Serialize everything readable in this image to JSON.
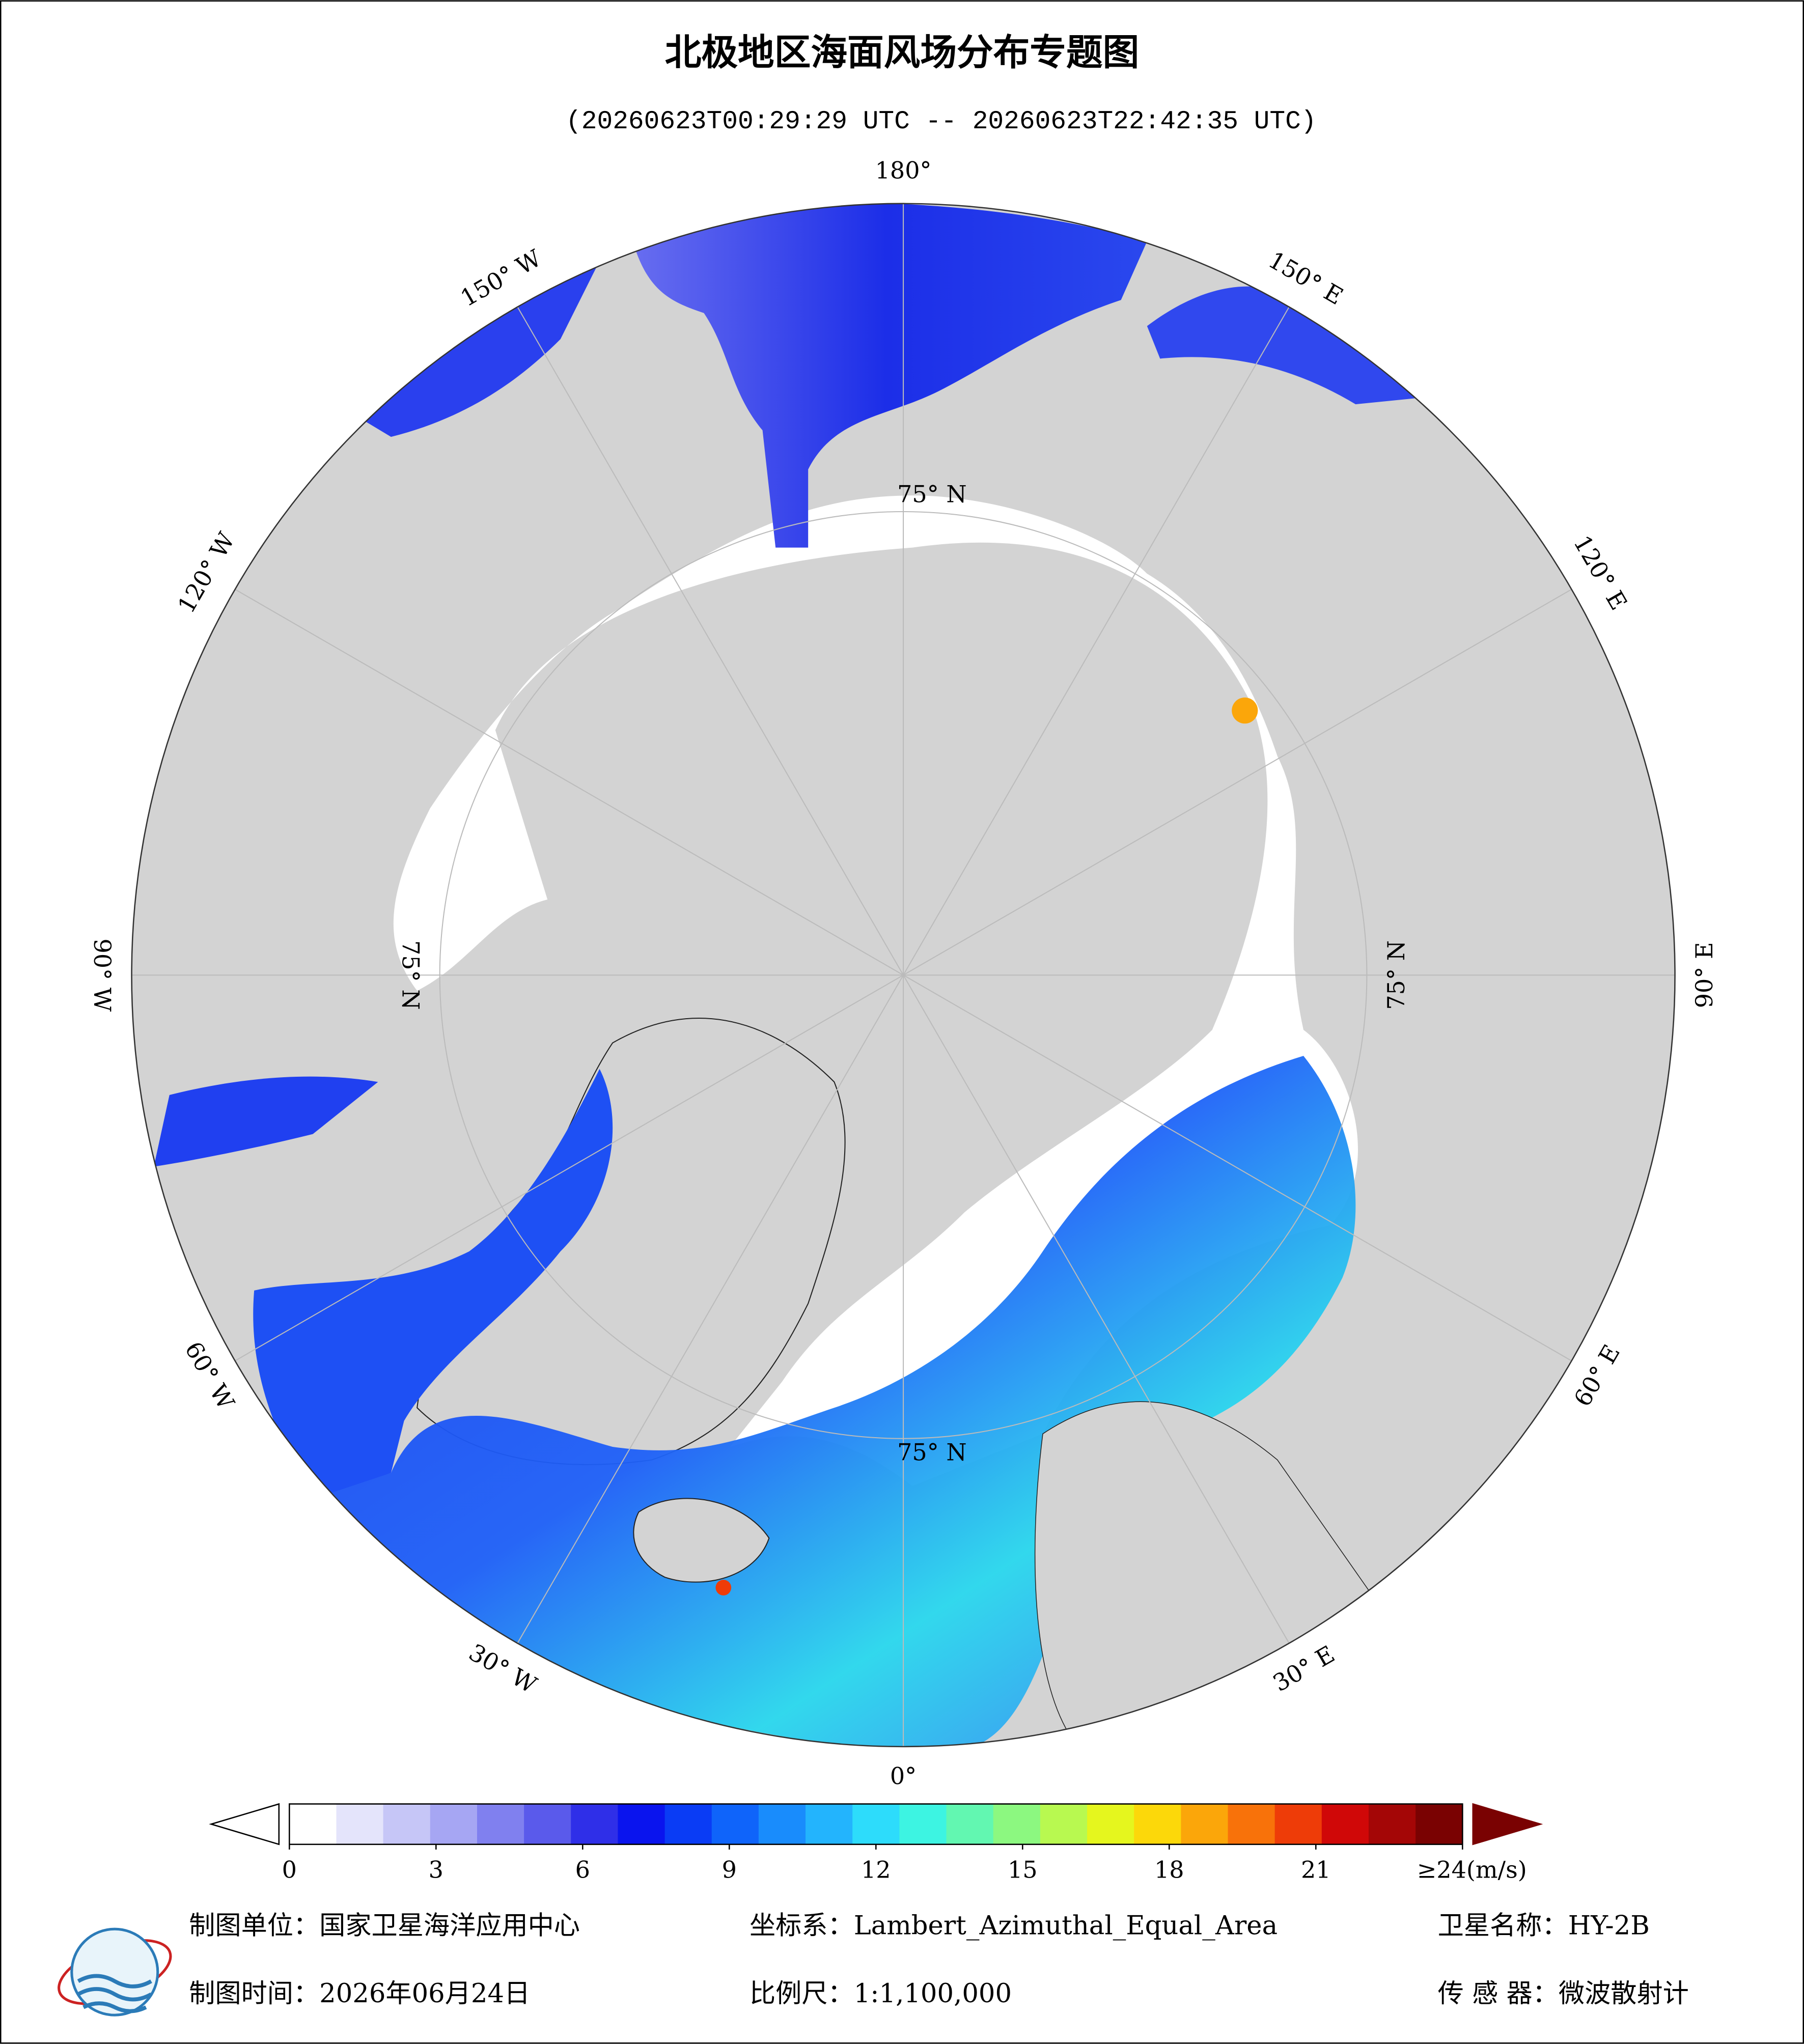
{
  "title": "北极地区海面风场分布专题图",
  "subtitle": "(20260623T00:29:29 UTC -- 20260623T22:42:35 UTC)",
  "longitude_labels": [
    {
      "value": 180,
      "label": "180°"
    },
    {
      "value": 150,
      "label": "150° E"
    },
    {
      "value": 120,
      "label": "120° E"
    },
    {
      "value": 90,
      "label": "90° E"
    },
    {
      "value": 60,
      "label": "60° E"
    },
    {
      "value": 30,
      "label": "30° E"
    },
    {
      "value": 0,
      "label": "0°"
    },
    {
      "value": -30,
      "label": "30° W"
    },
    {
      "value": -60,
      "label": "60° W"
    },
    {
      "value": -90,
      "label": "90° W"
    },
    {
      "value": -120,
      "label": "120° W"
    },
    {
      "value": -150,
      "label": "150° W"
    }
  ],
  "latitude_label": {
    "value": 75,
    "label": "75° N"
  },
  "colorbar": {
    "range": [
      0,
      24
    ],
    "ticks": [
      0,
      3,
      6,
      9,
      12,
      15,
      18,
      21,
      {
        "value": 24,
        "label": "≥24(m/s)"
      }
    ],
    "colors": [
      "#ffffff",
      "#e4e4fb",
      "#c6c6f7",
      "#a6a6f3",
      "#8080ef",
      "#5a5aeb",
      "#2f2fe8",
      "#0a14ee",
      "#0a3cf5",
      "#0f64fa",
      "#198cfc",
      "#23b4fd",
      "#2ddcfb",
      "#3df4e2",
      "#62f7b1",
      "#8cf880",
      "#b8f950",
      "#e5f61e",
      "#fcd80a",
      "#fba60a",
      "#f8720a",
      "#ee3c08",
      "#d00808",
      "#a40606",
      "#7a0202"
    ],
    "under_color": "#ffffff",
    "over_color": "#7a0202"
  },
  "footer": {
    "unit": "制图单位：国家卫星海洋应用中心",
    "projection": "坐标系：Lambert_Azimuthal_Equal_Area",
    "satellite": "卫星名称：HY-2B",
    "date": "制图时间：2026年06月24日",
    "scale": "比例尺：1:1,100,000",
    "sensor": "传 感 器：微波散射计"
  }
}
